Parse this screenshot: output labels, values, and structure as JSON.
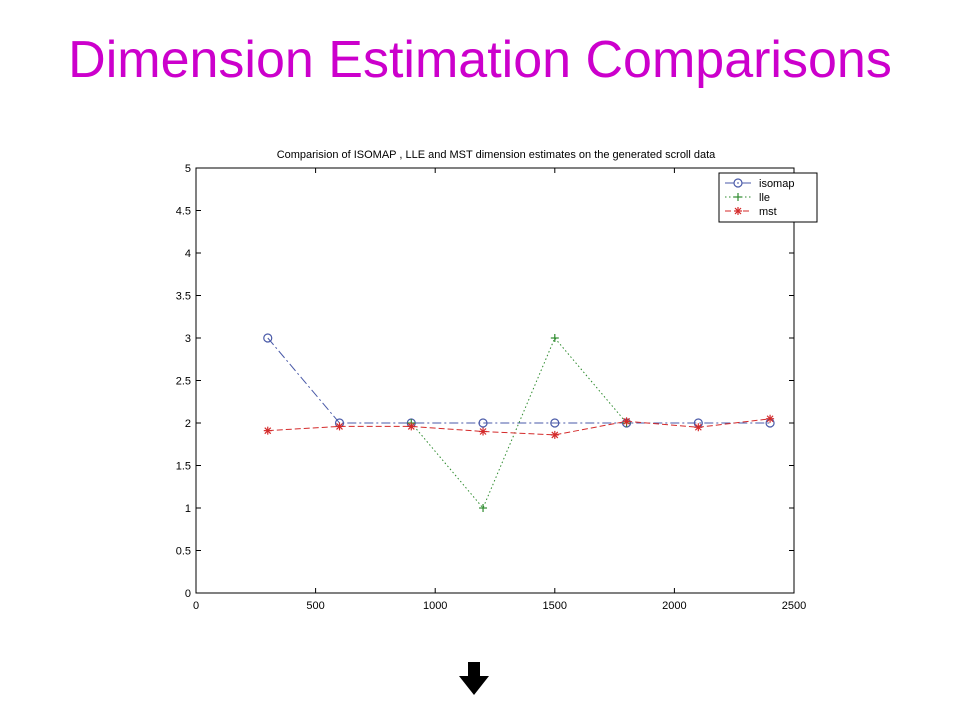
{
  "slide": {
    "title": "Dimension Estimation Comparisons"
  },
  "chart_data": {
    "type": "line",
    "title": "Comparision of ISOMAP , LLE and MST dimension estimates on the generated scroll data",
    "xlabel": "",
    "ylabel": "",
    "xlim": [
      0,
      2500
    ],
    "ylim": [
      0,
      5
    ],
    "xticks": [
      0,
      500,
      1000,
      1500,
      2000,
      2500
    ],
    "yticks": [
      0,
      0.5,
      1,
      1.5,
      2,
      2.5,
      3,
      3.5,
      4,
      4.5,
      5
    ],
    "x": [
      300,
      600,
      900,
      1200,
      1500,
      1800,
      2100,
      2400
    ],
    "grid": false,
    "legend_position": "top-right",
    "series": [
      {
        "name": "isomap",
        "values": [
          3,
          2,
          2,
          2,
          2,
          2,
          2,
          2
        ],
        "color": "#4a5aa8",
        "marker": "circle",
        "dash": "9 3 2 3"
      },
      {
        "name": "lle",
        "values": [
          null,
          null,
          2,
          1,
          3,
          2,
          null,
          null
        ],
        "color": "#2e8b2e",
        "marker": "plus",
        "dash": "1.5 2.5"
      },
      {
        "name": "mst",
        "values": [
          1.91,
          1.96,
          1.96,
          1.9,
          1.86,
          2.02,
          1.95,
          2.05
        ],
        "color": "#d42a2a",
        "marker": "star",
        "dash": "6 3"
      }
    ]
  },
  "ui": {
    "arrow_color": "#000000"
  }
}
